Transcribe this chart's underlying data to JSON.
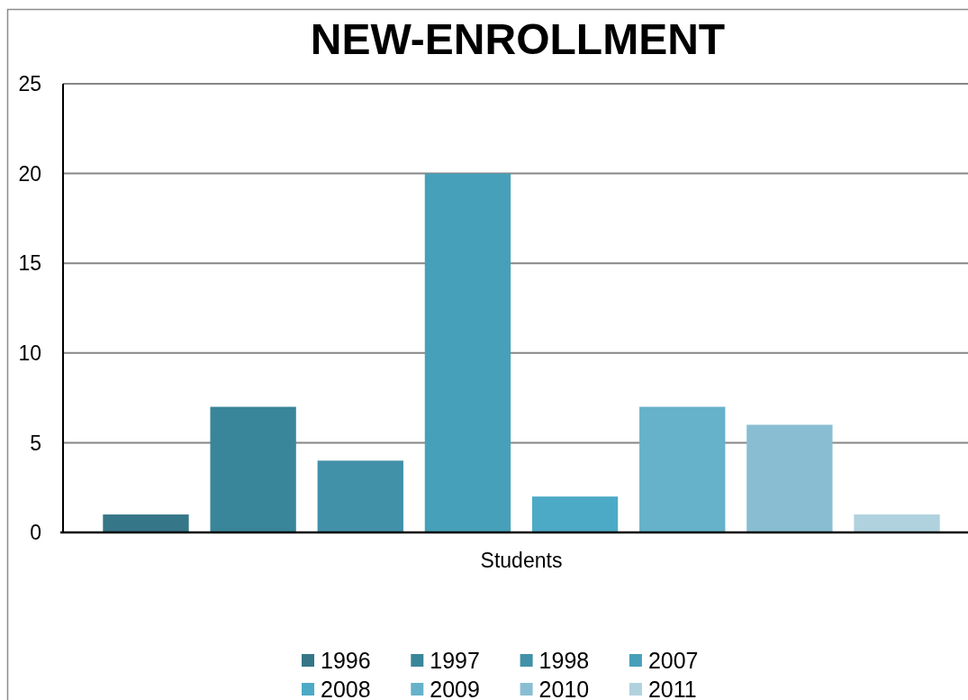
{
  "chart_data": {
    "type": "bar",
    "title": "NEW-ENROLLMENT",
    "categories": [
      "Students"
    ],
    "series": [
      {
        "name": "1996",
        "color": "#357688",
        "values": [
          1
        ]
      },
      {
        "name": "1997",
        "color": "#398599",
        "values": [
          7
        ]
      },
      {
        "name": "1998",
        "color": "#4191a9",
        "values": [
          4
        ]
      },
      {
        "name": "2007",
        "color": "#47a0b9",
        "values": [
          20
        ]
      },
      {
        "name": "2008",
        "color": "#4daac6",
        "values": [
          2
        ]
      },
      {
        "name": "2009",
        "color": "#65b2ca",
        "values": [
          7
        ]
      },
      {
        "name": "2010",
        "color": "#89bed2",
        "values": [
          6
        ]
      },
      {
        "name": "2011",
        "color": "#b0d2de",
        "values": [
          1
        ]
      }
    ],
    "ylim": [
      0,
      25
    ],
    "yticks": [
      0,
      5,
      10,
      15,
      20,
      25
    ],
    "grid": "y",
    "legend": "bottom"
  }
}
